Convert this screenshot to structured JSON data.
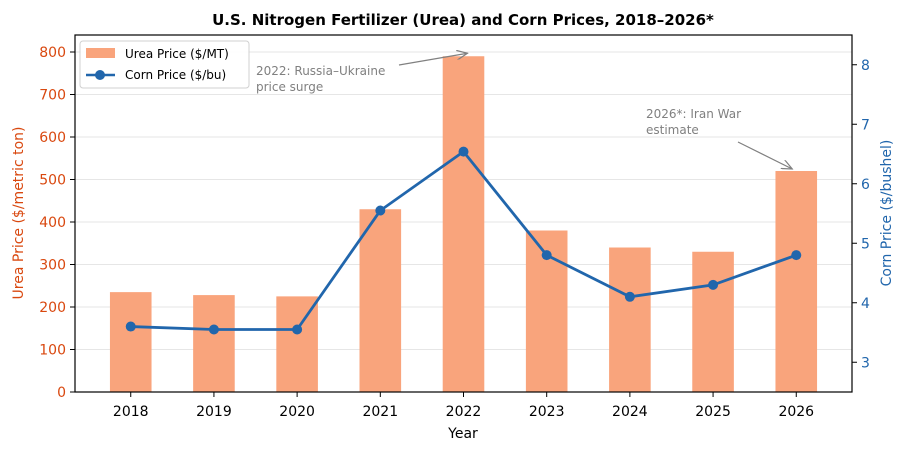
{
  "chart_data": {
    "type": "bar+line",
    "title": "U.S. Nitrogen Fertilizer (Urea) and Corn Prices, 2018–2026*",
    "xlabel": "Year",
    "ylabel_left": "Urea Price ($/metric ton)",
    "ylabel_right": "Corn Price ($/bushel)",
    "categories": [
      "2018",
      "2019",
      "2020",
      "2021",
      "2022",
      "2023",
      "2024",
      "2025",
      "2026"
    ],
    "ylim_left": [
      0,
      840
    ],
    "ylim_right": [
      2.5,
      8.5
    ],
    "yticks_left": [
      0,
      100,
      200,
      300,
      400,
      500,
      600,
      700,
      800
    ],
    "yticks_right": [
      3,
      4,
      5,
      6,
      7,
      8
    ],
    "grid": true,
    "legend_position": "top-left",
    "series": [
      {
        "name": "Urea Price ($/MT)",
        "type": "bar",
        "axis": "left",
        "color": "#f9a47c",
        "values": [
          235,
          228,
          225,
          430,
          790,
          380,
          340,
          330,
          520
        ]
      },
      {
        "name": "Corn Price ($/bu)",
        "type": "line",
        "axis": "right",
        "color": "#2166ac",
        "values": [
          3.6,
          3.55,
          3.55,
          5.55,
          6.54,
          4.8,
          4.1,
          4.3,
          4.8
        ]
      }
    ],
    "annotations": [
      {
        "lines": [
          "2022: Russia–Ukraine",
          "price surge"
        ],
        "target_category": "2022",
        "target_value": 790
      },
      {
        "lines": [
          "2026*: Iran War",
          "estimate"
        ],
        "target_category": "2026",
        "target_value": 520
      }
    ],
    "colors": {
      "left_axis": "#d9480f",
      "right_axis": "#2166ac",
      "annotation": "#808080"
    }
  }
}
